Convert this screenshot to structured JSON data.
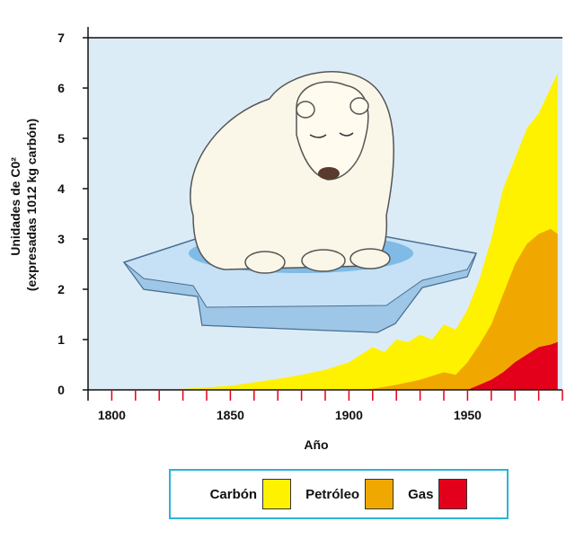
{
  "chart_data": {
    "type": "area",
    "title": "",
    "xlabel": "Año",
    "ylabel_line1": "Unidades de C0²",
    "ylabel_line2": "(expresadas 1012 kg carbón)",
    "xlim": [
      1790,
      1990
    ],
    "ylim": [
      0,
      7
    ],
    "x_ticks": [
      1800,
      1850,
      1900,
      1950
    ],
    "y_ticks": [
      0,
      1,
      2,
      3,
      4,
      5,
      6,
      7
    ],
    "legend_position": "bottom",
    "series": [
      {
        "name": "Carbón",
        "color": "#fff200",
        "x": [
          1800,
          1830,
          1850,
          1860,
          1870,
          1880,
          1890,
          1900,
          1905,
          1910,
          1915,
          1920,
          1925,
          1930,
          1935,
          1940,
          1945,
          1950,
          1955,
          1960,
          1965,
          1970,
          1975,
          1980,
          1985,
          1988
        ],
        "y": [
          0,
          0.02,
          0.08,
          0.15,
          0.22,
          0.3,
          0.4,
          0.55,
          0.7,
          0.85,
          0.75,
          1.0,
          0.95,
          1.1,
          1.0,
          1.3,
          1.2,
          1.6,
          2.2,
          3.0,
          4.0,
          4.6,
          5.2,
          5.5,
          6.0,
          6.3
        ]
      },
      {
        "name": "Petróleo",
        "color": "#f0a800",
        "x": [
          1900,
          1910,
          1920,
          1930,
          1940,
          1945,
          1950,
          1955,
          1960,
          1965,
          1970,
          1975,
          1980,
          1985,
          1988
        ],
        "y": [
          0,
          0.02,
          0.1,
          0.2,
          0.35,
          0.3,
          0.55,
          0.9,
          1.3,
          1.9,
          2.5,
          2.9,
          3.1,
          3.2,
          3.1
        ]
      },
      {
        "name": "Gas",
        "color": "#e2001a",
        "x": [
          1950,
          1955,
          1960,
          1965,
          1970,
          1975,
          1980,
          1985,
          1988
        ],
        "y": [
          0,
          0.1,
          0.2,
          0.35,
          0.55,
          0.7,
          0.85,
          0.9,
          0.95
        ]
      }
    ]
  },
  "legend": {
    "carbon_label": "Carbón",
    "petroleo_label": "Petróleo",
    "gas_label": "Gas"
  },
  "colors": {
    "plot_background": "#dcecf7",
    "tick_marks": "#e2001a"
  }
}
